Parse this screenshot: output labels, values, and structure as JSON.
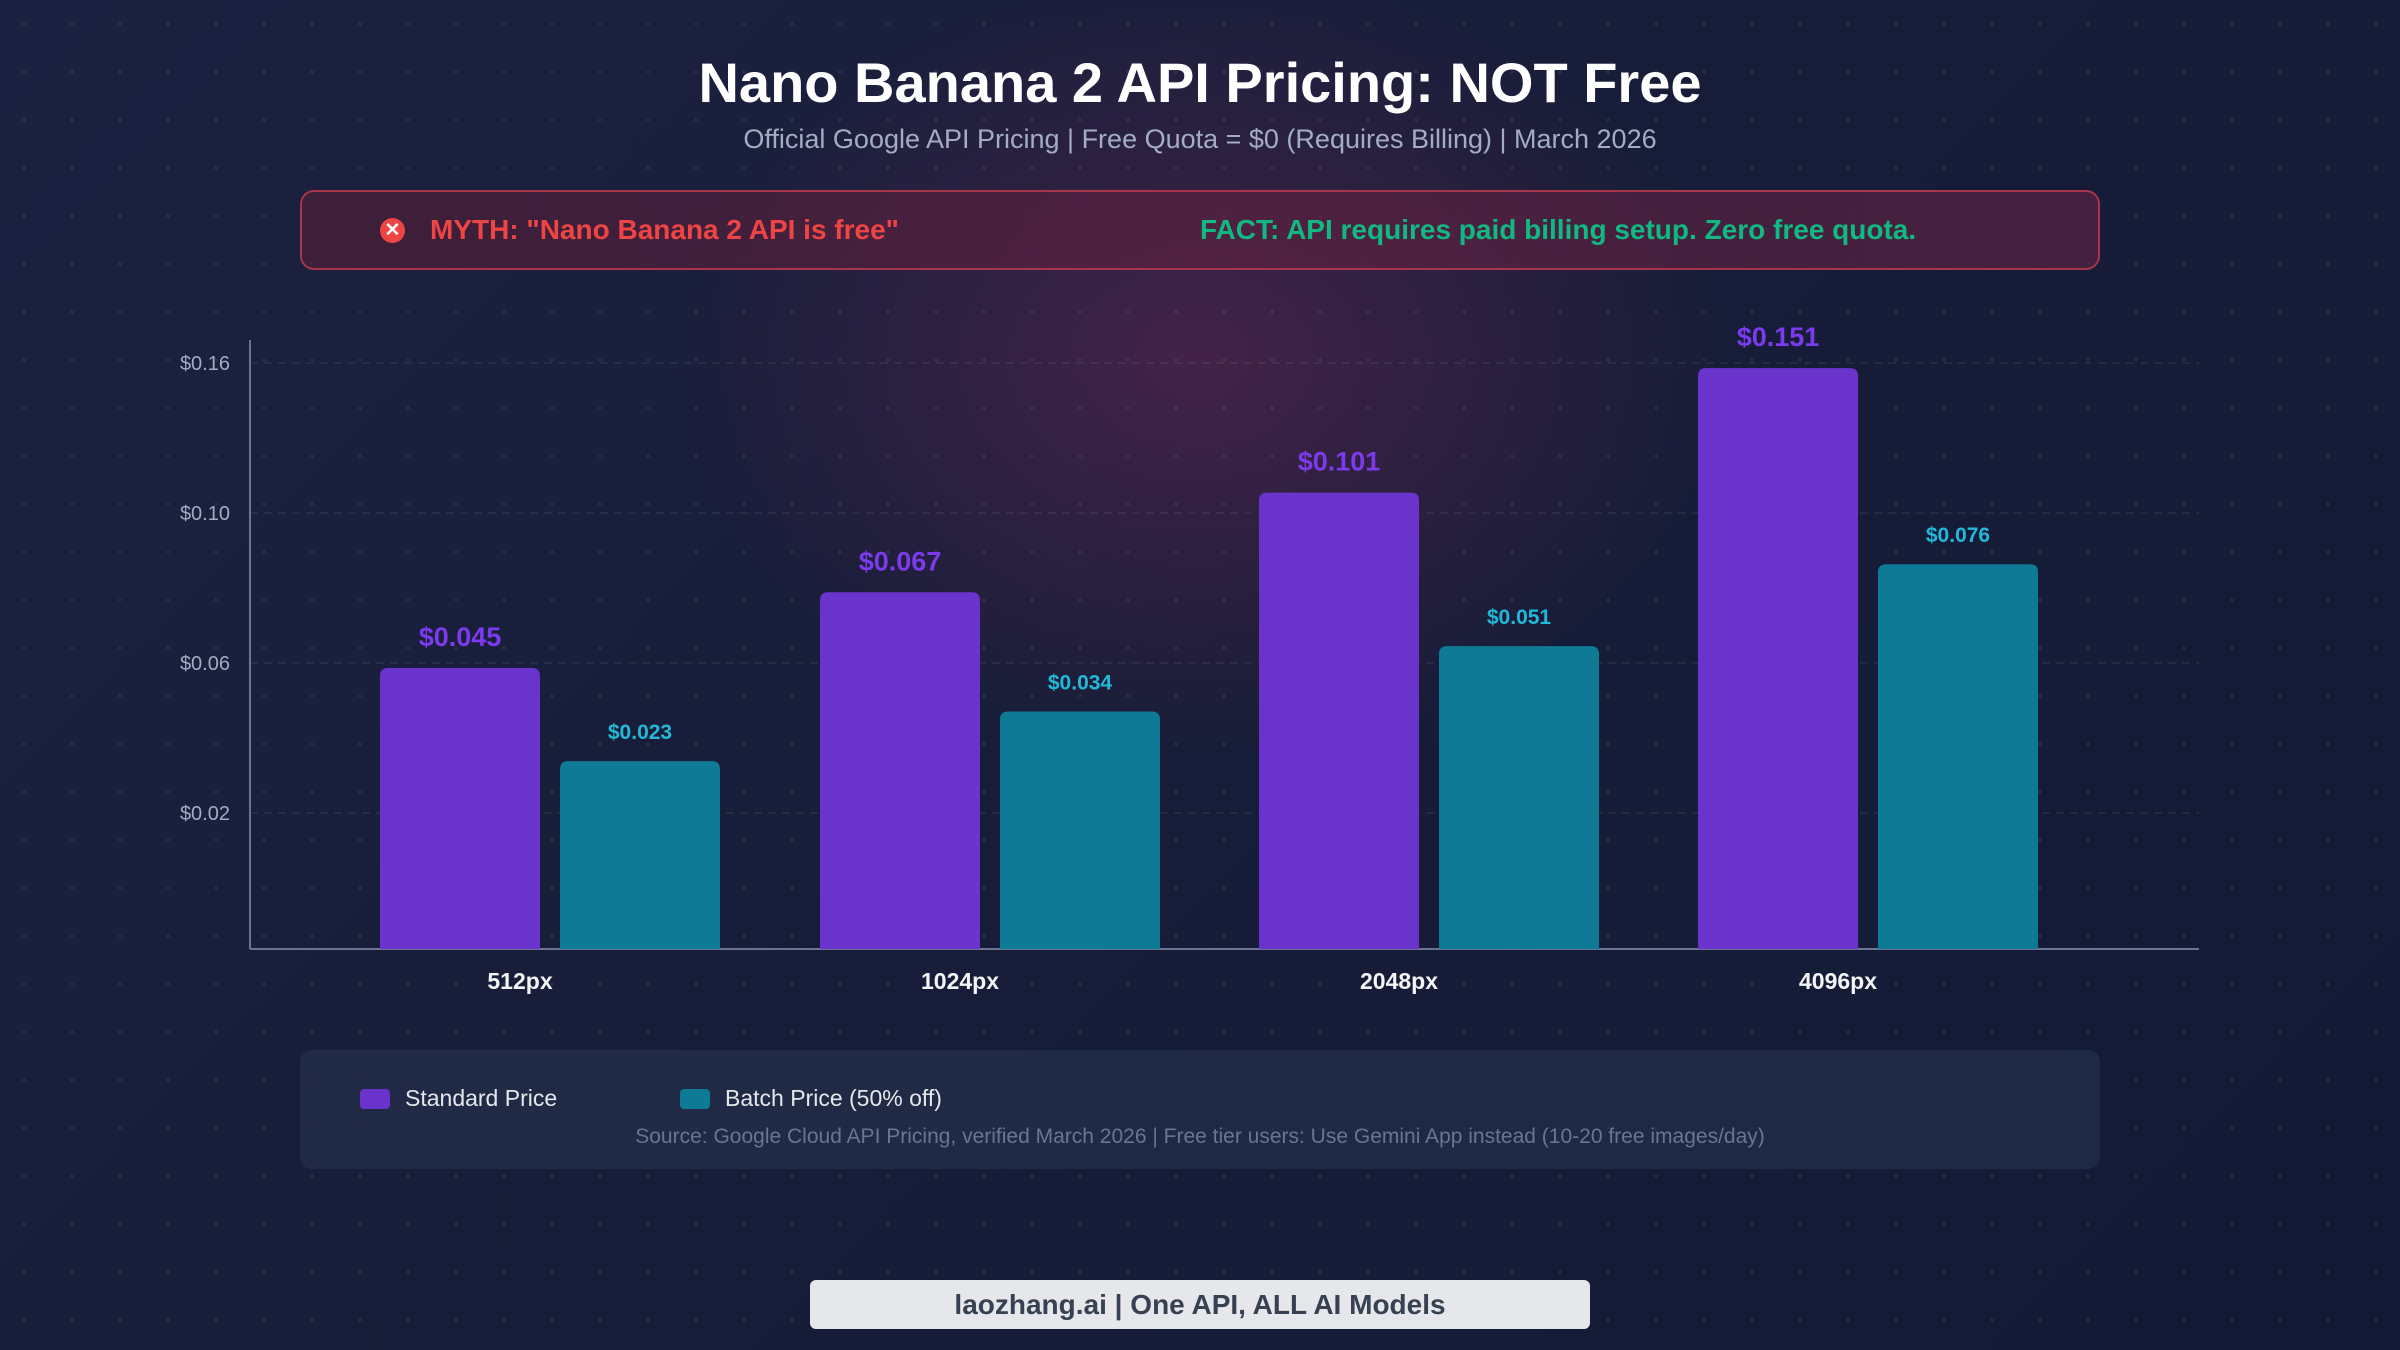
{
  "title": "Nano Banana 2 API Pricing: NOT Free",
  "subtitle": "Official Google API Pricing | Free Quota = $0 (Requires Billing) | March 2026",
  "banner": {
    "icon": "x-circle-icon",
    "myth": "MYTH: \"Nano Banana 2 API is free\"",
    "fact": "FACT: API requires paid billing setup. Zero free quota."
  },
  "chart_data": {
    "type": "bar",
    "categories": [
      "512px",
      "1024px",
      "2048px",
      "4096px"
    ],
    "series": [
      {
        "name": "Standard Price",
        "values": [
          0.045,
          0.067,
          0.101,
          0.151
        ],
        "labels": [
          "$0.045",
          "$0.067",
          "$0.101",
          "$0.151"
        ],
        "color": "#6a33cc",
        "label_color": "#7c3aed"
      },
      {
        "name": "Batch Price (50% off)",
        "values": [
          0.023,
          0.034,
          0.051,
          0.076
        ],
        "labels": [
          "$0.023",
          "$0.034",
          "$0.051",
          "$0.076"
        ],
        "color": "#0e7a96",
        "label_color": "#22b8d8"
      }
    ],
    "y_ticks": [
      "$0.16",
      "$0.10",
      "$0.06",
      "$0.02"
    ],
    "grid": true,
    "legend_placement": "bottom"
  },
  "source": "Source: Google Cloud API Pricing, verified March 2026 | Free tier users: Use Gemini App instead (10-20 free images/day)",
  "footer": "laozhang.ai | One API, ALL AI Models"
}
